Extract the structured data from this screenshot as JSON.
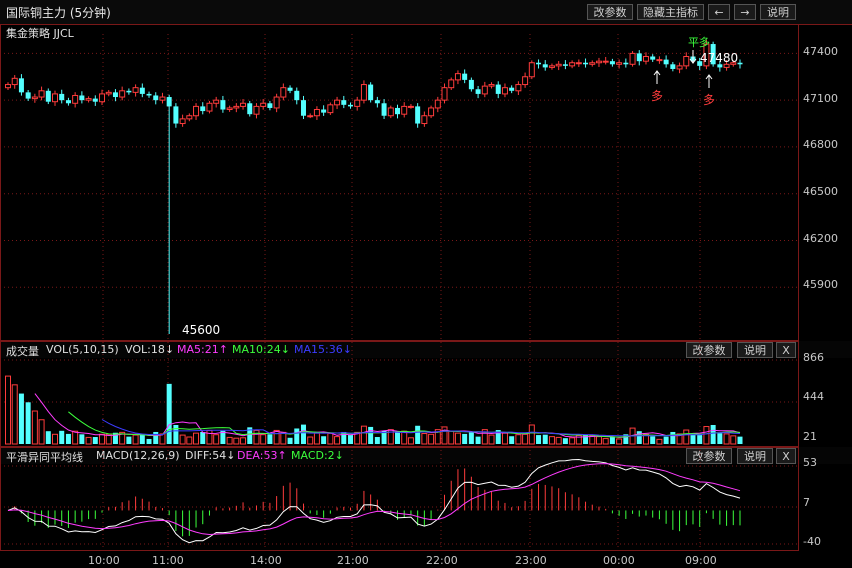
{
  "header": {
    "title": "国际铜主力 (5分钟)",
    "buttons": [
      "改参数",
      "隐藏主指标",
      "←",
      "→",
      "说明"
    ]
  },
  "main_panel": {
    "subtitle": "集金策略 JJCL",
    "y_ticks": [
      "47400",
      "47100",
      "46800",
      "46500",
      "46200",
      "45900"
    ],
    "annotations": {
      "low_label": "45600",
      "high_label": "47480",
      "signal_flat_long": "平多",
      "signal_long_1": "多",
      "signal_long_2": "多"
    }
  },
  "volume_panel": {
    "label": "成交量",
    "indicator": "VOL(5,10,15)",
    "vol": "VOL:18↓",
    "ma5": "MA5:21↑",
    "ma10": "MA10:24↓",
    "ma15": "MA15:36↓",
    "buttons": [
      "改参数",
      "说明",
      "X"
    ],
    "y_ticks": [
      "866",
      "444",
      "21"
    ]
  },
  "macd_panel": {
    "label": "平滑异同平均线",
    "indicator": "MACD(12,26,9)",
    "diff": "DIFF:54↓",
    "dea": "DEA:53↑",
    "macd": "MACD:2↓",
    "buttons": [
      "改参数",
      "说明",
      "X"
    ],
    "y_ticks": [
      "53",
      "7",
      "-40"
    ]
  },
  "x_axis": {
    "ticks": [
      "10:00",
      "11:00",
      "14:00",
      "21:00",
      "22:00",
      "23:00",
      "00:00",
      "09:00"
    ]
  },
  "colors": {
    "up": "#ff3c3c",
    "down": "#54ffff",
    "grid": "#7a1818",
    "ma5": "#ff3cff",
    "ma10": "#3cff3c",
    "ma15": "#3c3cff",
    "diff": "#ffffff",
    "dea": "#ff3cff"
  },
  "chart_data": {
    "type": "candlestick",
    "ylim": [
      45600,
      47550
    ],
    "closes": [
      47200,
      47240,
      47150,
      47110,
      47120,
      47160,
      47090,
      47140,
      47100,
      47080,
      47130,
      47100,
      47110,
      47090,
      47140,
      47150,
      47120,
      47160,
      47150,
      47180,
      47140,
      47130,
      47100,
      47120,
      47060,
      46950,
      46980,
      47000,
      47060,
      47030,
      47080,
      47100,
      47040,
      47050,
      47060,
      47080,
      47010,
      47060,
      47080,
      47050,
      47120,
      47180,
      47160,
      47100,
      47000,
      47000,
      47040,
      47020,
      47070,
      47100,
      47070,
      47060,
      47100,
      47200,
      47100,
      47080,
      47000,
      47050,
      47010,
      47060,
      47060,
      46950,
      47000,
      47050,
      47100,
      47180,
      47230,
      47270,
      47230,
      47170,
      47140,
      47190,
      47200,
      47140,
      47180,
      47160,
      47200,
      47250,
      47340,
      47330,
      47310,
      47320,
      47330,
      47320,
      47340,
      47340,
      47330,
      47340,
      47350,
      47350,
      47330,
      47340,
      47330,
      47400,
      47350,
      47380,
      47360,
      47360,
      47330,
      47300,
      47320,
      47380,
      47350,
      47320,
      47460,
      47330,
      47310,
      47330,
      47340,
      47330
    ]
  }
}
